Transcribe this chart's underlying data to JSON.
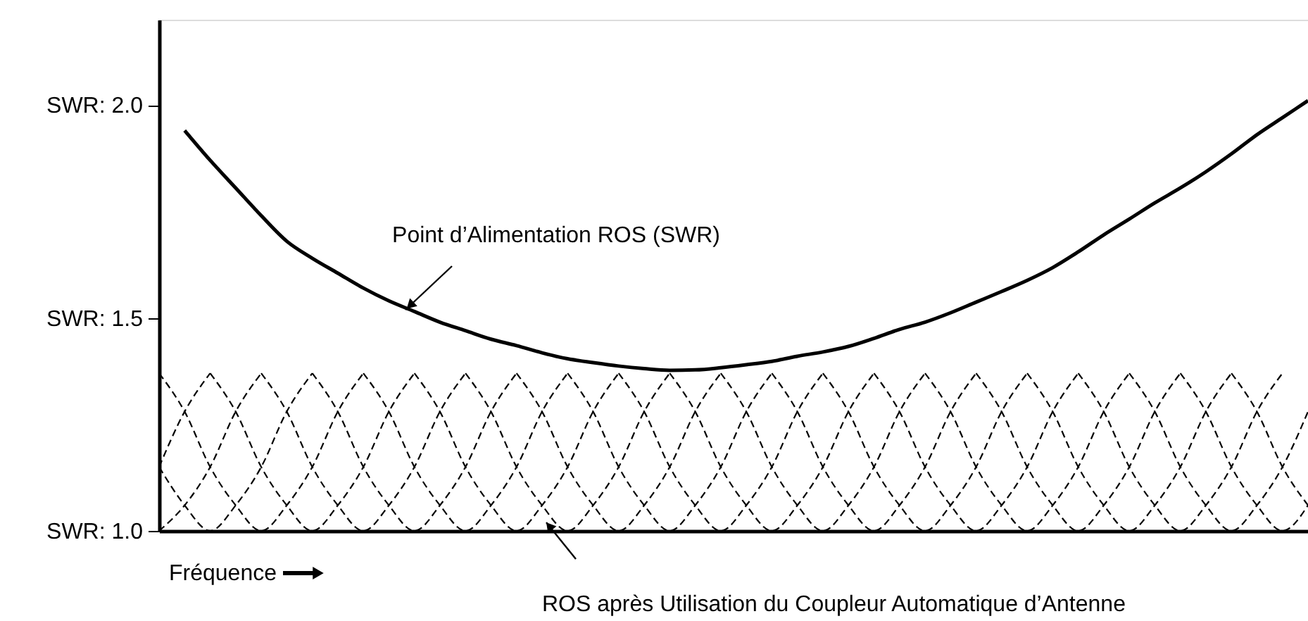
{
  "chart_data": {
    "type": "line",
    "xlabel": "Fréquence",
    "categories": [
      null,
      null,
      null,
      null,
      null,
      null,
      null,
      null,
      null,
      null,
      null,
      null,
      null,
      null,
      null,
      null,
      null,
      null,
      null,
      null,
      null,
      null,
      null,
      null,
      null,
      null,
      null,
      null,
      null,
      null,
      null,
      null,
      null,
      null,
      null,
      null,
      null,
      null,
      null,
      null,
      null,
      null,
      null,
      null,
      null,
      null
    ],
    "ylim": [
      1.0,
      2.2
    ],
    "yticks": [
      {
        "value": 1.0,
        "label": "SWR: 1.0"
      },
      {
        "value": 1.5,
        "label": "SWR: 1.5"
      },
      {
        "value": 2.0,
        "label": "SWR: 2.0"
      }
    ],
    "tick_labels": "y",
    "marker": "none",
    "annotations": [
      "Point d’Alimentation ROS (SWR)",
      "ROS après Utilisation du Coupleur Automatique d’Antenne"
    ],
    "series": [
      {
        "color": "#000000",
        "line_style": "solid",
        "values": [
          null,
          1.94,
          1.87,
          1.805,
          1.74,
          1.68,
          1.64,
          1.605,
          1.57,
          1.54,
          1.515,
          1.49,
          1.47,
          1.45,
          1.435,
          1.418,
          1.404,
          1.395,
          1.387,
          1.381,
          1.377,
          1.378,
          1.383,
          1.39,
          1.398,
          1.41,
          1.42,
          1.433,
          1.452,
          1.473,
          1.49,
          1.512,
          1.537,
          1.562,
          1.588,
          1.618,
          1.655,
          1.695,
          1.732,
          1.77,
          1.805,
          1.843,
          1.885,
          1.93,
          1.97,
          2.01
        ]
      },
      {
        "color": "#000000",
        "line_style": "dashed",
        "values": [
          1.15,
          1.28,
          1.37,
          null,
          null,
          null,
          null,
          null,
          null,
          null,
          null,
          null,
          null,
          null,
          null,
          null,
          null,
          null,
          null,
          null,
          null,
          null,
          null,
          null,
          null,
          null,
          null,
          null,
          null,
          null,
          null,
          null,
          null,
          null,
          null,
          null,
          null,
          null,
          null,
          null,
          null,
          null,
          null,
          null,
          null,
          null
        ]
      },
      {
        "color": "#000000",
        "line_style": "dashed",
        "values": [
          1.0,
          1.06,
          1.15,
          1.28,
          1.37,
          null,
          null,
          null,
          null,
          null,
          null,
          null,
          null,
          null,
          null,
          null,
          null,
          null,
          null,
          null,
          null,
          null,
          null,
          null,
          null,
          null,
          null,
          null,
          null,
          null,
          null,
          null,
          null,
          null,
          null,
          null,
          null,
          null,
          null,
          null,
          null,
          null,
          null,
          null,
          null,
          null
        ]
      },
      {
        "color": "#000000",
        "line_style": "dashed",
        "values": [
          1.15,
          1.06,
          1.0,
          1.06,
          1.15,
          1.28,
          1.37,
          null,
          null,
          null,
          null,
          null,
          null,
          null,
          null,
          null,
          null,
          null,
          null,
          null,
          null,
          null,
          null,
          null,
          null,
          null,
          null,
          null,
          null,
          null,
          null,
          null,
          null,
          null,
          null,
          null,
          null,
          null,
          null,
          null,
          null,
          null,
          null,
          null,
          null,
          null
        ]
      },
      {
        "color": "#000000",
        "line_style": "dashed",
        "values": [
          1.37,
          1.28,
          1.15,
          1.06,
          1.0,
          1.06,
          1.15,
          1.28,
          1.37,
          null,
          null,
          null,
          null,
          null,
          null,
          null,
          null,
          null,
          null,
          null,
          null,
          null,
          null,
          null,
          null,
          null,
          null,
          null,
          null,
          null,
          null,
          null,
          null,
          null,
          null,
          null,
          null,
          null,
          null,
          null,
          null,
          null,
          null,
          null,
          null,
          null
        ]
      },
      {
        "color": "#000000",
        "line_style": "dashed",
        "values": [
          null,
          null,
          1.37,
          1.28,
          1.15,
          1.06,
          1.0,
          1.06,
          1.15,
          1.28,
          1.37,
          null,
          null,
          null,
          null,
          null,
          null,
          null,
          null,
          null,
          null,
          null,
          null,
          null,
          null,
          null,
          null,
          null,
          null,
          null,
          null,
          null,
          null,
          null,
          null,
          null,
          null,
          null,
          null,
          null,
          null,
          null,
          null,
          null,
          null,
          null
        ]
      },
      {
        "color": "#000000",
        "line_style": "dashed",
        "values": [
          null,
          null,
          null,
          null,
          1.37,
          1.28,
          1.15,
          1.06,
          1.0,
          1.06,
          1.15,
          1.28,
          1.37,
          null,
          null,
          null,
          null,
          null,
          null,
          null,
          null,
          null,
          null,
          null,
          null,
          null,
          null,
          null,
          null,
          null,
          null,
          null,
          null,
          null,
          null,
          null,
          null,
          null,
          null,
          null,
          null,
          null,
          null,
          null,
          null,
          null
        ]
      },
      {
        "color": "#000000",
        "line_style": "dashed",
        "values": [
          null,
          null,
          null,
          null,
          null,
          null,
          1.37,
          1.28,
          1.15,
          1.06,
          1.0,
          1.06,
          1.15,
          1.28,
          1.37,
          null,
          null,
          null,
          null,
          null,
          null,
          null,
          null,
          null,
          null,
          null,
          null,
          null,
          null,
          null,
          null,
          null,
          null,
          null,
          null,
          null,
          null,
          null,
          null,
          null,
          null,
          null,
          null,
          null,
          null,
          null
        ]
      },
      {
        "color": "#000000",
        "line_style": "dashed",
        "values": [
          null,
          null,
          null,
          null,
          null,
          null,
          null,
          null,
          1.37,
          1.28,
          1.15,
          1.06,
          1.0,
          1.06,
          1.15,
          1.28,
          1.37,
          null,
          null,
          null,
          null,
          null,
          null,
          null,
          null,
          null,
          null,
          null,
          null,
          null,
          null,
          null,
          null,
          null,
          null,
          null,
          null,
          null,
          null,
          null,
          null,
          null,
          null,
          null,
          null,
          null
        ]
      },
      {
        "color": "#000000",
        "line_style": "dashed",
        "values": [
          null,
          null,
          null,
          null,
          null,
          null,
          null,
          null,
          null,
          null,
          1.37,
          1.28,
          1.15,
          1.06,
          1.0,
          1.06,
          1.15,
          1.28,
          1.37,
          null,
          null,
          null,
          null,
          null,
          null,
          null,
          null,
          null,
          null,
          null,
          null,
          null,
          null,
          null,
          null,
          null,
          null,
          null,
          null,
          null,
          null,
          null,
          null,
          null,
          null,
          null
        ]
      },
      {
        "color": "#000000",
        "line_style": "dashed",
        "values": [
          null,
          null,
          null,
          null,
          null,
          null,
          null,
          null,
          null,
          null,
          null,
          null,
          1.37,
          1.28,
          1.15,
          1.06,
          1.0,
          1.06,
          1.15,
          1.28,
          1.37,
          null,
          null,
          null,
          null,
          null,
          null,
          null,
          null,
          null,
          null,
          null,
          null,
          null,
          null,
          null,
          null,
          null,
          null,
          null,
          null,
          null,
          null,
          null,
          null,
          null
        ]
      },
      {
        "color": "#000000",
        "line_style": "dashed",
        "values": [
          null,
          null,
          null,
          null,
          null,
          null,
          null,
          null,
          null,
          null,
          null,
          null,
          null,
          null,
          1.37,
          1.28,
          1.15,
          1.06,
          1.0,
          1.06,
          1.15,
          1.28,
          1.37,
          null,
          null,
          null,
          null,
          null,
          null,
          null,
          null,
          null,
          null,
          null,
          null,
          null,
          null,
          null,
          null,
          null,
          null,
          null,
          null,
          null,
          null,
          null
        ]
      },
      {
        "color": "#000000",
        "line_style": "dashed",
        "values": [
          null,
          null,
          null,
          null,
          null,
          null,
          null,
          null,
          null,
          null,
          null,
          null,
          null,
          null,
          null,
          null,
          1.37,
          1.28,
          1.15,
          1.06,
          1.0,
          1.06,
          1.15,
          1.28,
          1.37,
          null,
          null,
          null,
          null,
          null,
          null,
          null,
          null,
          null,
          null,
          null,
          null,
          null,
          null,
          null,
          null,
          null,
          null,
          null,
          null,
          null
        ]
      },
      {
        "color": "#000000",
        "line_style": "dashed",
        "values": [
          null,
          null,
          null,
          null,
          null,
          null,
          null,
          null,
          null,
          null,
          null,
          null,
          null,
          null,
          null,
          null,
          null,
          null,
          1.37,
          1.28,
          1.15,
          1.06,
          1.0,
          1.06,
          1.15,
          1.28,
          1.37,
          null,
          null,
          null,
          null,
          null,
          null,
          null,
          null,
          null,
          null,
          null,
          null,
          null,
          null,
          null,
          null,
          null,
          null,
          null
        ]
      },
      {
        "color": "#000000",
        "line_style": "dashed",
        "values": [
          null,
          null,
          null,
          null,
          null,
          null,
          null,
          null,
          null,
          null,
          null,
          null,
          null,
          null,
          null,
          null,
          null,
          null,
          null,
          null,
          1.37,
          1.28,
          1.15,
          1.06,
          1.0,
          1.06,
          1.15,
          1.28,
          1.37,
          null,
          null,
          null,
          null,
          null,
          null,
          null,
          null,
          null,
          null,
          null,
          null,
          null,
          null,
          null,
          null,
          null
        ]
      },
      {
        "color": "#000000",
        "line_style": "dashed",
        "values": [
          null,
          null,
          null,
          null,
          null,
          null,
          null,
          null,
          null,
          null,
          null,
          null,
          null,
          null,
          null,
          null,
          null,
          null,
          null,
          null,
          null,
          null,
          1.37,
          1.28,
          1.15,
          1.06,
          1.0,
          1.06,
          1.15,
          1.28,
          1.37,
          null,
          null,
          null,
          null,
          null,
          null,
          null,
          null,
          null,
          null,
          null,
          null,
          null,
          null,
          null
        ]
      },
      {
        "color": "#000000",
        "line_style": "dashed",
        "values": [
          null,
          null,
          null,
          null,
          null,
          null,
          null,
          null,
          null,
          null,
          null,
          null,
          null,
          null,
          null,
          null,
          null,
          null,
          null,
          null,
          null,
          null,
          null,
          null,
          1.37,
          1.28,
          1.15,
          1.06,
          1.0,
          1.06,
          1.15,
          1.28,
          1.37,
          null,
          null,
          null,
          null,
          null,
          null,
          null,
          null,
          null,
          null,
          null,
          null,
          null
        ]
      },
      {
        "color": "#000000",
        "line_style": "dashed",
        "values": [
          null,
          null,
          null,
          null,
          null,
          null,
          null,
          null,
          null,
          null,
          null,
          null,
          null,
          null,
          null,
          null,
          null,
          null,
          null,
          null,
          null,
          null,
          null,
          null,
          null,
          null,
          1.37,
          1.28,
          1.15,
          1.06,
          1.0,
          1.06,
          1.15,
          1.28,
          1.37,
          null,
          null,
          null,
          null,
          null,
          null,
          null,
          null,
          null,
          null,
          null
        ]
      },
      {
        "color": "#000000",
        "line_style": "dashed",
        "values": [
          null,
          null,
          null,
          null,
          null,
          null,
          null,
          null,
          null,
          null,
          null,
          null,
          null,
          null,
          null,
          null,
          null,
          null,
          null,
          null,
          null,
          null,
          null,
          null,
          null,
          null,
          null,
          null,
          1.37,
          1.28,
          1.15,
          1.06,
          1.0,
          1.06,
          1.15,
          1.28,
          1.37,
          null,
          null,
          null,
          null,
          null,
          null,
          null,
          null,
          null
        ]
      },
      {
        "color": "#000000",
        "line_style": "dashed",
        "values": [
          null,
          null,
          null,
          null,
          null,
          null,
          null,
          null,
          null,
          null,
          null,
          null,
          null,
          null,
          null,
          null,
          null,
          null,
          null,
          null,
          null,
          null,
          null,
          null,
          null,
          null,
          null,
          null,
          null,
          null,
          1.37,
          1.28,
          1.15,
          1.06,
          1.0,
          1.06,
          1.15,
          1.28,
          1.37,
          null,
          null,
          null,
          null,
          null,
          null,
          null
        ]
      },
      {
        "color": "#000000",
        "line_style": "dashed",
        "values": [
          null,
          null,
          null,
          null,
          null,
          null,
          null,
          null,
          null,
          null,
          null,
          null,
          null,
          null,
          null,
          null,
          null,
          null,
          null,
          null,
          null,
          null,
          null,
          null,
          null,
          null,
          null,
          null,
          null,
          null,
          null,
          null,
          1.37,
          1.28,
          1.15,
          1.06,
          1.0,
          1.06,
          1.15,
          1.28,
          1.37,
          null,
          null,
          null,
          null,
          null
        ]
      },
      {
        "color": "#000000",
        "line_style": "dashed",
        "values": [
          null,
          null,
          null,
          null,
          null,
          null,
          null,
          null,
          null,
          null,
          null,
          null,
          null,
          null,
          null,
          null,
          null,
          null,
          null,
          null,
          null,
          null,
          null,
          null,
          null,
          null,
          null,
          null,
          null,
          null,
          null,
          null,
          null,
          null,
          1.37,
          1.28,
          1.15,
          1.06,
          1.0,
          1.06,
          1.15,
          1.28,
          1.37,
          null,
          null,
          null
        ]
      },
      {
        "color": "#000000",
        "line_style": "dashed",
        "values": [
          null,
          null,
          null,
          null,
          null,
          null,
          null,
          null,
          null,
          null,
          null,
          null,
          null,
          null,
          null,
          null,
          null,
          null,
          null,
          null,
          null,
          null,
          null,
          null,
          null,
          null,
          null,
          null,
          null,
          null,
          null,
          null,
          null,
          null,
          null,
          null,
          1.37,
          1.28,
          1.15,
          1.06,
          1.0,
          1.06,
          1.15,
          1.28,
          1.37,
          null
        ]
      },
      {
        "color": "#000000",
        "line_style": "dashed",
        "values": [
          null,
          null,
          null,
          null,
          null,
          null,
          null,
          null,
          null,
          null,
          null,
          null,
          null,
          null,
          null,
          null,
          null,
          null,
          null,
          null,
          null,
          null,
          null,
          null,
          null,
          null,
          null,
          null,
          null,
          null,
          null,
          null,
          null,
          null,
          null,
          null,
          null,
          null,
          1.37,
          1.28,
          1.15,
          1.06,
          1.0,
          1.06,
          1.15,
          1.28
        ]
      },
      {
        "color": "#000000",
        "line_style": "dashed",
        "values": [
          null,
          null,
          null,
          null,
          null,
          null,
          null,
          null,
          null,
          null,
          null,
          null,
          null,
          null,
          null,
          null,
          null,
          null,
          null,
          null,
          null,
          null,
          null,
          null,
          null,
          null,
          null,
          null,
          null,
          null,
          null,
          null,
          null,
          null,
          null,
          null,
          null,
          null,
          null,
          null,
          1.37,
          1.28,
          1.15,
          1.06,
          1.0,
          1.06
        ]
      },
      {
        "color": "#000000",
        "line_style": "dashed",
        "values": [
          null,
          null,
          null,
          null,
          null,
          null,
          null,
          null,
          null,
          null,
          null,
          null,
          null,
          null,
          null,
          null,
          null,
          null,
          null,
          null,
          null,
          null,
          null,
          null,
          null,
          null,
          null,
          null,
          null,
          null,
          null,
          null,
          null,
          null,
          null,
          null,
          null,
          null,
          null,
          null,
          null,
          null,
          1.37,
          1.28,
          1.15,
          1.06
        ]
      }
    ]
  }
}
